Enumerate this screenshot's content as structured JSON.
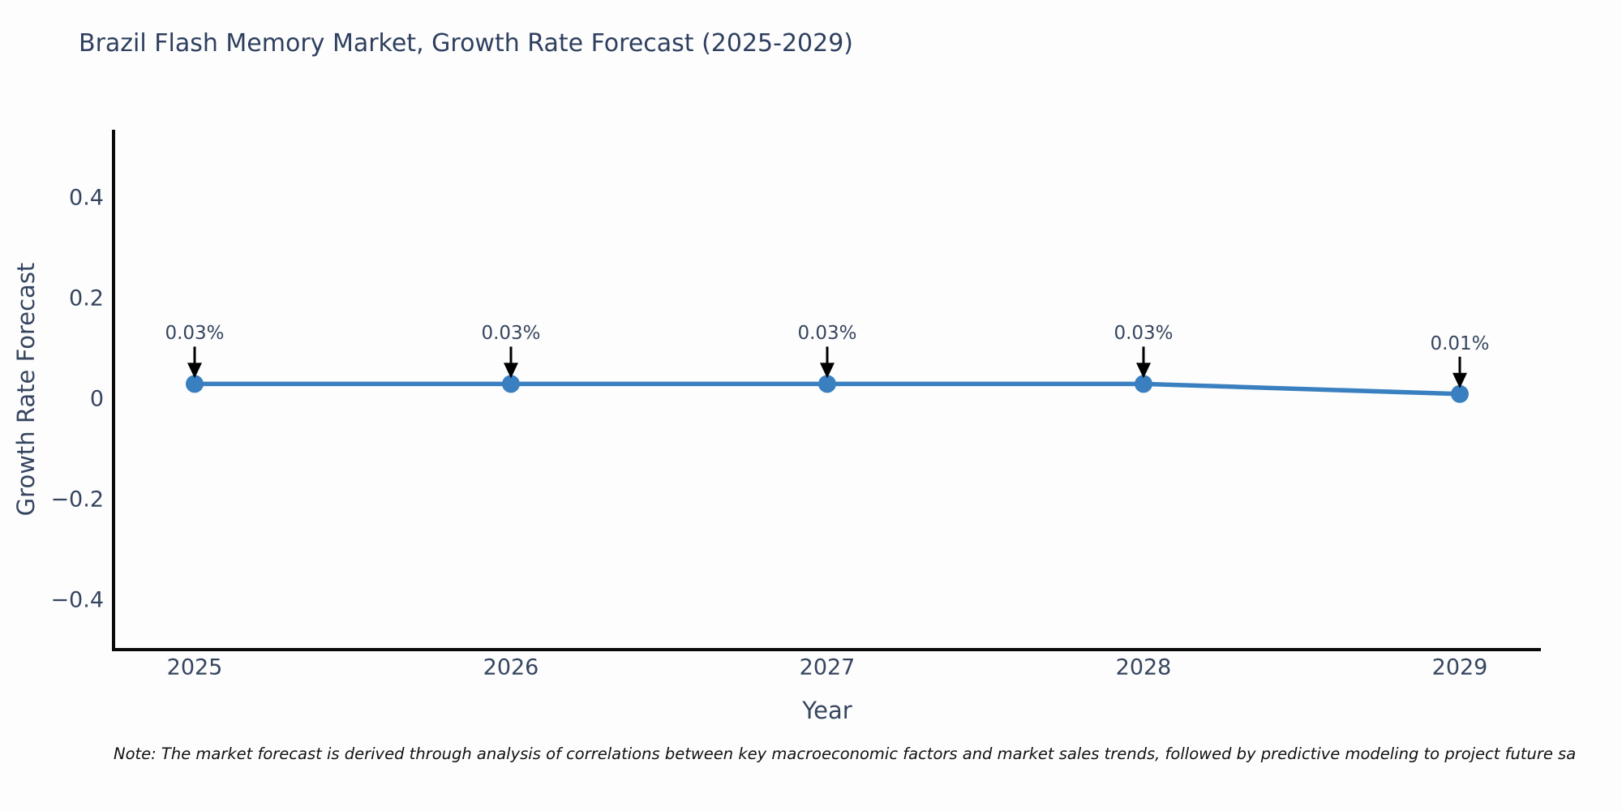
{
  "title": "Brazil Flash Memory Market, Growth Rate Forecast (2025-2029)",
  "note": "Note: The market forecast is derived through analysis of correlations between key macroeconomic factors and market sales trends, followed by predictive modeling to project future sa",
  "colors": {
    "title_text": "#2e3f5f",
    "axis_text": "#36455f",
    "spine": "#0a0a0a",
    "line": "#3a80c0",
    "marker": "#3a80c0",
    "arrow": "#000000",
    "note_text": "#111111"
  },
  "chart_data": {
    "type": "line",
    "title": "Brazil Flash Memory Market, Growth Rate Forecast (2025-2029)",
    "xlabel": "Year",
    "ylabel": "Growth Rate Forecast",
    "categories": [
      "2025",
      "2026",
      "2027",
      "2028",
      "2029"
    ],
    "series": [
      {
        "name": "Growth Rate Forecast",
        "values": [
          0.03,
          0.03,
          0.03,
          0.03,
          0.01
        ],
        "point_labels": [
          "0.03%",
          "0.03%",
          "0.03%",
          "0.03%",
          "0.01%"
        ]
      }
    ],
    "yticks": [
      0.4,
      0.2,
      0,
      -0.2,
      -0.4
    ],
    "ytick_labels": [
      "0.4",
      "0.2",
      "0",
      "−0.2",
      "−0.4"
    ],
    "ylim": [
      -0.5,
      0.54
    ],
    "grid": false,
    "legend_position": "none",
    "annotation_style": "value above point with black down-arrow"
  }
}
